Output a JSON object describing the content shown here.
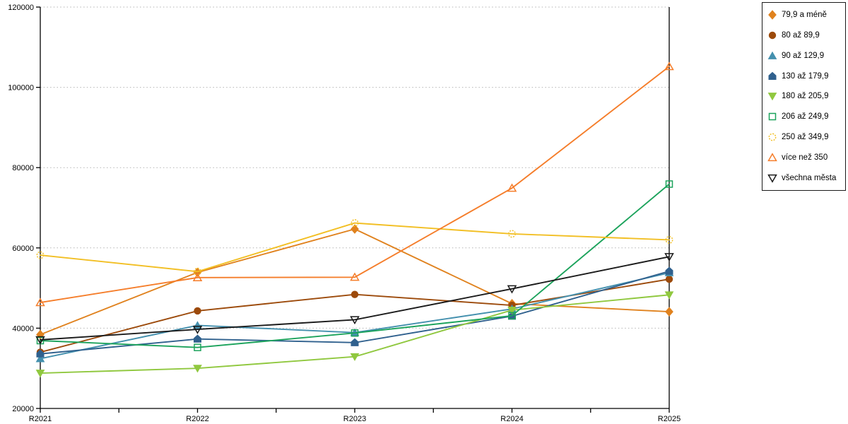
{
  "chart_data": {
    "type": "line",
    "title": "",
    "xlabel": "",
    "ylabel": "",
    "categories": [
      "R2021",
      "R2022",
      "R2023",
      "R2024",
      "R2025"
    ],
    "series": [
      {
        "name": "79,9 a méně",
        "marker": "diamond",
        "fill": "solid",
        "color": "#E0821E",
        "values": [
          38400,
          53900,
          64700,
          46100,
          44100
        ]
      },
      {
        "name": "80 až 89,9",
        "marker": "circle",
        "fill": "solid",
        "color": "#9C4A0B",
        "values": [
          34000,
          44300,
          48400,
          45700,
          52200
        ]
      },
      {
        "name": "90 až 129,9",
        "marker": "triangle-up",
        "fill": "solid",
        "color": "#4490AE",
        "values": [
          32400,
          40700,
          38900,
          44800,
          53800
        ]
      },
      {
        "name": "130 až 179,9",
        "marker": "pentagon",
        "fill": "solid",
        "color": "#30618E",
        "values": [
          33600,
          37300,
          36400,
          43000,
          54200
        ]
      },
      {
        "name": "180 až 205,9",
        "marker": "triangle-down",
        "fill": "solid",
        "color": "#90C83F",
        "values": [
          28800,
          30000,
          32900,
          44500,
          48300
        ]
      },
      {
        "name": "206 až 249,9",
        "marker": "square",
        "fill": "open",
        "color": "#1CA35C",
        "values": [
          36900,
          35200,
          38800,
          43100,
          75900
        ]
      },
      {
        "name": "250 až 349,9",
        "marker": "circle",
        "fill": "open",
        "dashed_marker": true,
        "color": "#F2BF24",
        "values": [
          58200,
          54100,
          66200,
          63500,
          62000
        ]
      },
      {
        "name": "více než 350",
        "marker": "triangle-up",
        "fill": "open",
        "color": "#F57D2A",
        "values": [
          46400,
          52600,
          52700,
          74900,
          105200
        ]
      },
      {
        "name": "všechna města",
        "marker": "triangle-down",
        "fill": "open",
        "color": "#1A1A1A",
        "values": [
          37100,
          39700,
          42100,
          49800,
          57800
        ]
      }
    ],
    "ylim": [
      20000,
      120000
    ],
    "ytick_step": 20000,
    "ytick_labels": [
      "20000",
      "40000",
      "60000",
      "80000",
      "100000",
      "120000"
    ],
    "grid": "horizontal-dotted",
    "gridline_color": "#b3b3b3",
    "axis_color": "#000000",
    "legend_position": "top-right",
    "x_minor_ticks": true
  }
}
